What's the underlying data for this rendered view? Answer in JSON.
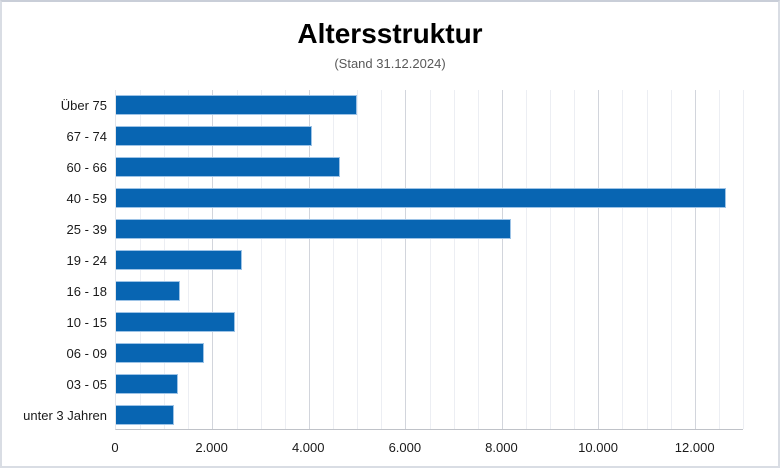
{
  "page": {
    "background": "#ffffff",
    "border_color": "#d9dde4"
  },
  "chart_data": {
    "type": "bar",
    "orientation": "horizontal",
    "title": "Altersstruktur",
    "subtitle": "(Stand 31.12.2024)",
    "categories": [
      "Über 75",
      "67 - 74",
      "60 - 66",
      "40 - 59",
      "25 - 39",
      "19 - 24",
      "16 - 18",
      "10 - 15",
      "06 - 09",
      "03 - 05",
      "unter 3 Jahren"
    ],
    "values": [
      5000,
      4060,
      4640,
      12650,
      8180,
      2620,
      1330,
      2470,
      1830,
      1290,
      1210
    ],
    "xlabel": "",
    "ylabel": "",
    "xlim": [
      0,
      13000
    ],
    "x_ticks": [
      {
        "value": 0,
        "label": "0"
      },
      {
        "value": 2000,
        "label": "2.000"
      },
      {
        "value": 4000,
        "label": "4.000"
      },
      {
        "value": 6000,
        "label": "6.000"
      },
      {
        "value": 8000,
        "label": "8.000"
      },
      {
        "value": 10000,
        "label": "10.000"
      },
      {
        "value": 12000,
        "label": "12.000"
      }
    ],
    "grid": {
      "show": true,
      "minor_step": 500,
      "major_step": 2000
    },
    "legend_position": "none",
    "colors": {
      "bar_fill": "#0865b2",
      "bar_border": "#9dc3e6",
      "grid_minor": "#eceef3",
      "grid_major": "#d2d5dc",
      "axis_line": "#bfc2c8",
      "title_text": "#000000",
      "subtitle_text": "#595959",
      "tick_text": "#1a1a1a"
    }
  }
}
